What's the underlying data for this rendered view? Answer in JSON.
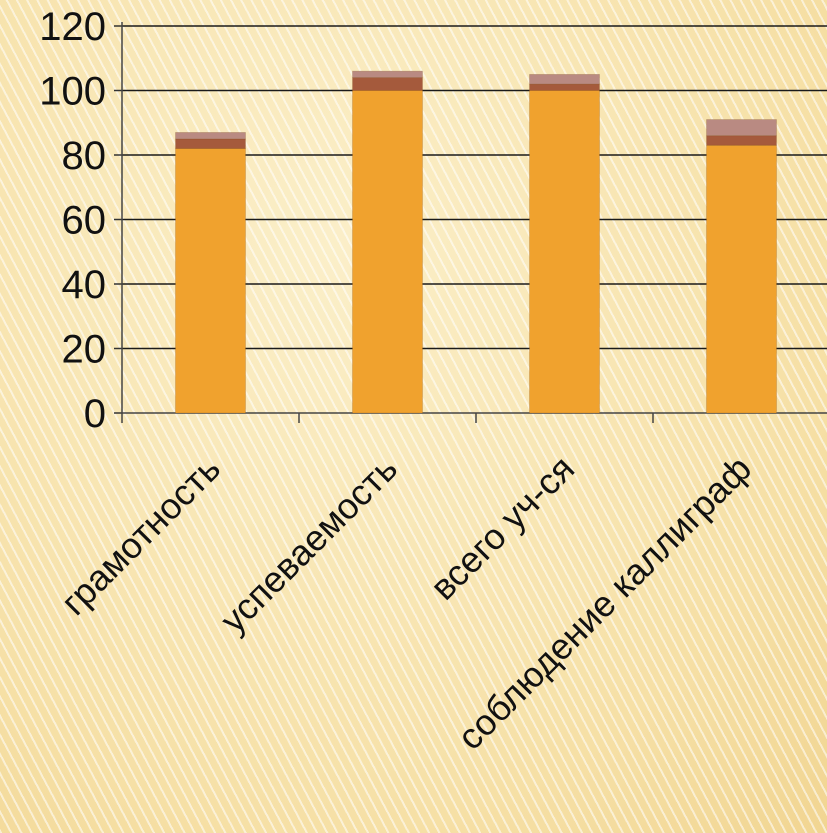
{
  "chart_data": {
    "type": "bar",
    "stacked": true,
    "categories": [
      "грамотность",
      "успеваемость",
      "всего уч-ся",
      "соблюдение каллиграф"
    ],
    "series": [
      {
        "values": [
          82,
          100,
          100,
          83
        ],
        "color": "#f0a22e"
      },
      {
        "values": [
          3,
          4,
          2,
          3
        ],
        "color": "#a55a3c"
      },
      {
        "values": [
          2,
          2,
          3,
          5
        ],
        "color": "#b98a82"
      }
    ],
    "yticks": [
      "0",
      "20",
      "40",
      "60",
      "80",
      "100",
      "120"
    ],
    "ylim": [
      0,
      120
    ],
    "grid": true,
    "legend": "none",
    "title": "",
    "xlabel": "",
    "ylabel": ""
  }
}
